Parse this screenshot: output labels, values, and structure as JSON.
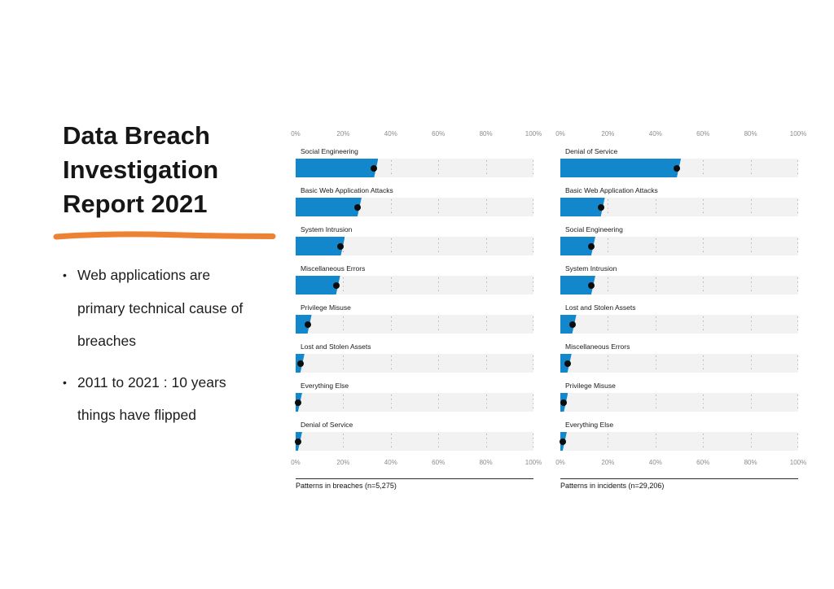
{
  "slide": {
    "title": "Data Breach\nInvestigation\nReport 2021",
    "accent_color": "#ED8233",
    "bullet_char": "•",
    "bullets": [
      "Web applications are\nprimary technical cause of\nbreaches",
      "2011 to 2021 : 10 years\nthings have flipped"
    ]
  },
  "chart_data": [
    {
      "type": "bar",
      "orientation": "horizontal",
      "title": "Patterns in breaches (n=5,275)",
      "xlabel": "",
      "ylabel": "",
      "xlim": [
        0,
        100
      ],
      "axis_ticks": [
        "0%",
        "20%",
        "40%",
        "60%",
        "80%",
        "100%"
      ],
      "axis_positions": [
        0,
        20,
        40,
        60,
        80,
        100
      ],
      "grid": "dotted-vertical",
      "legend": "none",
      "bar_color": "#1287CB",
      "dot_color": "#0C0C0C",
      "track_color": "#F2F2F2",
      "categories": [
        "Social Engineering",
        "Basic Web Application Attacks",
        "System Intrusion",
        "Miscellaneous Errors",
        "Privilege Misuse",
        "Lost and Stolen Assets",
        "Everything Else",
        "Denial of Service"
      ],
      "values": [
        33,
        26,
        19,
        17,
        5,
        2,
        1,
        1
      ]
    },
    {
      "type": "bar",
      "orientation": "horizontal",
      "title": "Patterns in incidents (n=29,206)",
      "xlabel": "",
      "ylabel": "",
      "xlim": [
        0,
        100
      ],
      "axis_ticks": [
        "0%",
        "20%",
        "40%",
        "60%",
        "80%",
        "100%"
      ],
      "axis_positions": [
        0,
        20,
        40,
        60,
        80,
        100
      ],
      "grid": "dotted-vertical",
      "legend": "none",
      "bar_color": "#1287CB",
      "dot_color": "#0C0C0C",
      "track_color": "#F2F2F2",
      "categories": [
        "Denial of Service",
        "Basic Web Application Attacks",
        "Social Engineering",
        "System Intrusion",
        "Lost and Stolen Assets",
        "Miscellaneous Errors",
        "Privilege Misuse",
        "Everything Else"
      ],
      "values": [
        49,
        17,
        13,
        13,
        5,
        3,
        1.5,
        1
      ]
    }
  ]
}
